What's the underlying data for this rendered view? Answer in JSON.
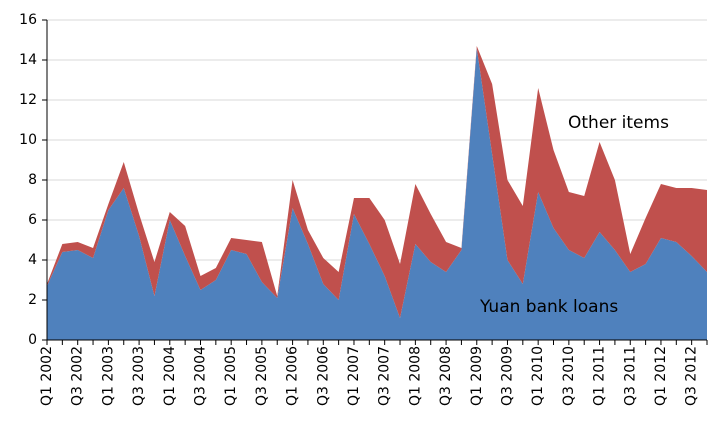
{
  "chart_data": {
    "type": "stacked_area",
    "categories": [
      "Q1 2002",
      null,
      "Q3 2002",
      null,
      "Q1 2003",
      null,
      "Q3 2003",
      null,
      "Q1 2004",
      null,
      "Q3 2004",
      null,
      "Q1 2005",
      null,
      "Q3 2005",
      null,
      "Q1 2006",
      null,
      "Q3 2006",
      null,
      "Q1 2007",
      null,
      "Q3 2007",
      null,
      "Q1 2008",
      null,
      "Q3 2008",
      null,
      "Q1 2009",
      null,
      "Q3 2009",
      null,
      "Q1 2010",
      null,
      "Q3 2010",
      null,
      "Q1 2011",
      null,
      "Q3 2011",
      null,
      "Q1 2012",
      null,
      "Q3 2012",
      null
    ],
    "series": [
      {
        "name": "Yuan bank loans",
        "color": "#4f81bd",
        "values": [
          2.7,
          4.4,
          4.5,
          4.1,
          6.5,
          7.6,
          5.2,
          2.2,
          6.0,
          4.2,
          2.5,
          3.0,
          4.5,
          4.3,
          2.9,
          2.1,
          6.6,
          4.8,
          2.8,
          2.0,
          6.3,
          4.8,
          3.2,
          1.1,
          4.8,
          3.9,
          3.4,
          4.5,
          14.6,
          9.3,
          4.0,
          2.8,
          7.4,
          5.6,
          4.5,
          4.1,
          5.4,
          4.5,
          3.4,
          3.8,
          5.1,
          4.9,
          4.2,
          3.4
        ]
      },
      {
        "name": "Other items",
        "color": "#c0504d",
        "values": [
          0.1,
          0.4,
          0.4,
          0.5,
          0.3,
          1.3,
          1.1,
          1.7,
          0.4,
          1.5,
          0.7,
          0.6,
          0.6,
          0.7,
          2.0,
          0.1,
          1.4,
          0.7,
          1.3,
          1.4,
          0.8,
          2.3,
          2.8,
          2.7,
          3.0,
          2.4,
          1.5,
          0.1,
          0.1,
          3.5,
          4.0,
          3.9,
          5.2,
          3.9,
          2.9,
          3.1,
          4.5,
          3.5,
          0.9,
          2.3,
          2.7,
          2.7,
          3.4,
          4.1
        ]
      }
    ],
    "ylim": [
      0,
      16
    ],
    "yticks": [
      0,
      2,
      4,
      6,
      8,
      10,
      12,
      14,
      16
    ],
    "grid": true
  }
}
